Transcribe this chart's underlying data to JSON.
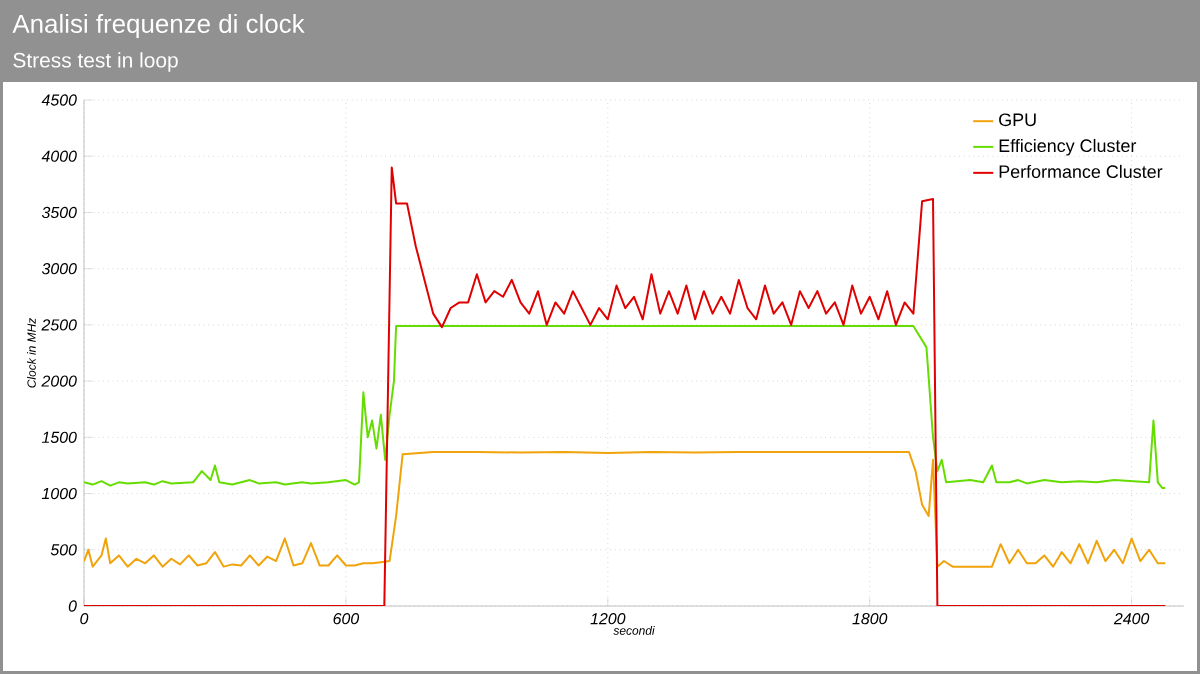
{
  "chart_data": {
    "type": "line",
    "title": "Analisi frequenze di clock",
    "subtitle": "Stress test in loop",
    "xlabel": "secondi",
    "ylabel": "Clock in MHz",
    "xlim": [
      0,
      2520
    ],
    "ylim": [
      0,
      4500
    ],
    "xticks": [
      0,
      600,
      1200,
      1800,
      2400
    ],
    "yticks": [
      0,
      500,
      1000,
      1500,
      2000,
      2500,
      3000,
      3500,
      4000,
      4500
    ],
    "grid": true,
    "legend": "top right",
    "marker": "none",
    "line_style": "solid",
    "series": [
      {
        "name": "GPU",
        "color": "#f0a30a",
        "x": [
          0,
          10,
          20,
          40,
          50,
          60,
          80,
          100,
          120,
          140,
          160,
          180,
          200,
          220,
          240,
          260,
          280,
          300,
          320,
          340,
          360,
          380,
          400,
          420,
          440,
          460,
          480,
          500,
          520,
          540,
          560,
          580,
          600,
          620,
          640,
          660,
          680,
          700,
          715,
          730,
          800,
          900,
          1000,
          1100,
          1200,
          1300,
          1400,
          1500,
          1600,
          1700,
          1800,
          1890,
          1905,
          1920,
          1935,
          1945,
          1955,
          1970,
          1990,
          2040,
          2080,
          2100,
          2120,
          2140,
          2160,
          2180,
          2200,
          2220,
          2240,
          2260,
          2280,
          2300,
          2320,
          2340,
          2360,
          2380,
          2400,
          2420,
          2440,
          2460,
          2477
        ],
        "values": [
          400,
          500,
          350,
          450,
          600,
          380,
          450,
          350,
          420,
          380,
          450,
          350,
          420,
          370,
          450,
          360,
          380,
          480,
          350,
          370,
          360,
          450,
          360,
          440,
          400,
          600,
          360,
          380,
          560,
          360,
          360,
          450,
          360,
          360,
          380,
          380,
          390,
          400,
          800,
          1350,
          1370,
          1370,
          1365,
          1370,
          1360,
          1370,
          1365,
          1370,
          1370,
          1370,
          1370,
          1370,
          1200,
          900,
          800,
          1300,
          350,
          400,
          350,
          350,
          350,
          550,
          380,
          500,
          380,
          380,
          450,
          350,
          480,
          380,
          550,
          380,
          580,
          400,
          500,
          380,
          600,
          400,
          500,
          380,
          380
        ]
      },
      {
        "name": "Efficiency Cluster",
        "color": "#66dd00",
        "x": [
          0,
          20,
          40,
          60,
          80,
          100,
          140,
          160,
          180,
          200,
          250,
          270,
          290,
          300,
          310,
          340,
          380,
          400,
          440,
          460,
          500,
          520,
          560,
          600,
          620,
          630,
          640,
          650,
          660,
          670,
          680,
          690,
          700,
          710,
          715,
          800,
          1000,
          1200,
          1500,
          1700,
          1900,
          1930,
          1945,
          1955,
          1965,
          1975,
          2000,
          2030,
          2060,
          2080,
          2090,
          2120,
          2140,
          2160,
          2200,
          2240,
          2280,
          2320,
          2360,
          2400,
          2440,
          2450,
          2460,
          2470,
          2477
        ],
        "values": [
          1100,
          1080,
          1110,
          1070,
          1100,
          1090,
          1100,
          1080,
          1110,
          1090,
          1100,
          1200,
          1120,
          1250,
          1100,
          1080,
          1120,
          1090,
          1100,
          1080,
          1100,
          1090,
          1100,
          1120,
          1080,
          1100,
          1900,
          1500,
          1650,
          1400,
          1700,
          1300,
          1700,
          2000,
          2490,
          2490,
          2490,
          2490,
          2490,
          2490,
          2490,
          2300,
          1500,
          1200,
          1300,
          1100,
          1110,
          1120,
          1100,
          1250,
          1100,
          1100,
          1120,
          1090,
          1120,
          1100,
          1110,
          1100,
          1120,
          1110,
          1100,
          1650,
          1100,
          1050,
          1050
        ]
      },
      {
        "name": "Performance Cluster",
        "color": "#e00000",
        "x": [
          0,
          600,
          688,
          705,
          715,
          740,
          760,
          780,
          800,
          820,
          840,
          860,
          880,
          900,
          920,
          940,
          960,
          980,
          1000,
          1020,
          1040,
          1060,
          1080,
          1100,
          1120,
          1140,
          1160,
          1180,
          1200,
          1220,
          1240,
          1260,
          1280,
          1300,
          1320,
          1340,
          1360,
          1380,
          1400,
          1420,
          1440,
          1460,
          1480,
          1500,
          1520,
          1540,
          1560,
          1580,
          1600,
          1620,
          1640,
          1660,
          1680,
          1700,
          1720,
          1740,
          1760,
          1780,
          1800,
          1820,
          1840,
          1860,
          1880,
          1900,
          1920,
          1945,
          1955,
          2477
        ],
        "values": [
          0,
          0,
          0,
          3900,
          3580,
          3580,
          3200,
          2900,
          2600,
          2480,
          2650,
          2700,
          2700,
          2950,
          2700,
          2800,
          2750,
          2900,
          2700,
          2600,
          2800,
          2500,
          2700,
          2600,
          2800,
          2650,
          2500,
          2650,
          2550,
          2850,
          2650,
          2750,
          2550,
          2950,
          2600,
          2800,
          2600,
          2850,
          2550,
          2800,
          2600,
          2750,
          2600,
          2900,
          2650,
          2550,
          2850,
          2600,
          2700,
          2500,
          2800,
          2650,
          2800,
          2600,
          2700,
          2500,
          2850,
          2600,
          2750,
          2550,
          2800,
          2500,
          2700,
          2600,
          3600,
          3620,
          0,
          0
        ]
      }
    ]
  }
}
